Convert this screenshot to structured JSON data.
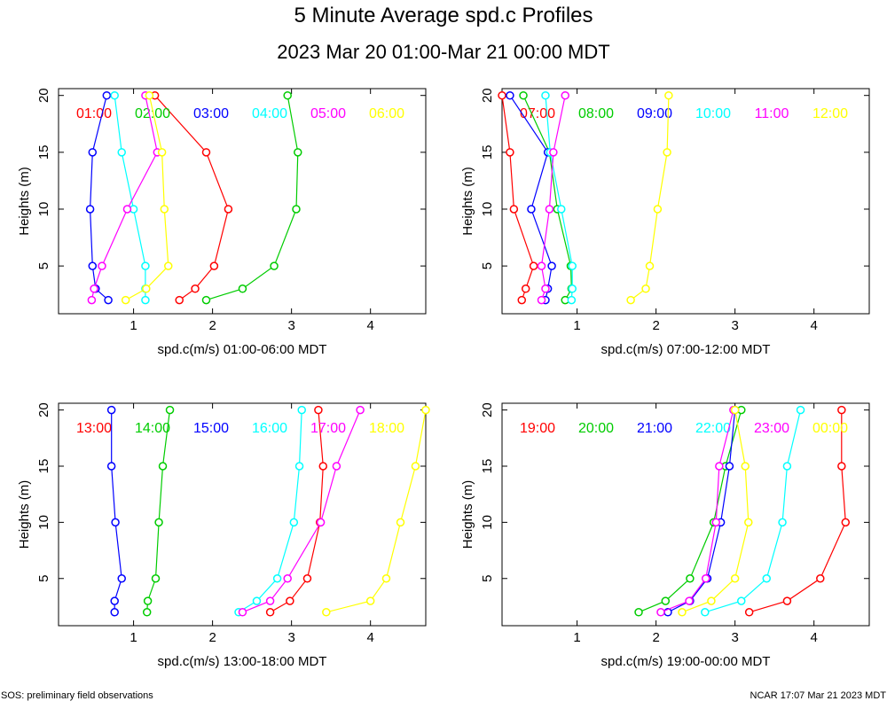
{
  "title": "5 Minute Average spd.c Profiles",
  "subtitle": "2023 Mar 20 01:00-Mar 21 00:00 MDT",
  "footer_left": "SOS: preliminary field observations",
  "footer_right": "NCAR 17:07 Mar 21 2023 MDT",
  "colors": [
    "#ff0000",
    "#00cc00",
    "#0000ff",
    "#00ffff",
    "#ff00ff",
    "#ffff00"
  ],
  "chart_data": [
    {
      "type": "line",
      "xlabel": "spd.c(m/s) 01:00-06:00 MDT",
      "ylabel": "Heights (m)",
      "xlim": [
        0.05,
        4.7
      ],
      "ylim": [
        0.8,
        20.6
      ],
      "xticks": [
        1,
        2,
        3,
        4
      ],
      "yticks": [
        5,
        10,
        15,
        20
      ],
      "series": [
        {
          "name": "01:00",
          "x": [
            1.58,
            1.78,
            2.02,
            2.2,
            1.92,
            1.27
          ],
          "y": [
            2,
            3,
            5,
            10,
            15,
            20
          ]
        },
        {
          "name": "02:00",
          "x": [
            1.92,
            2.38,
            2.78,
            3.06,
            3.08,
            2.95
          ],
          "y": [
            2,
            3,
            5,
            10,
            15,
            20
          ]
        },
        {
          "name": "03:00",
          "x": [
            0.68,
            0.52,
            0.48,
            0.45,
            0.48,
            0.66
          ],
          "y": [
            2,
            3,
            5,
            10,
            15,
            20
          ]
        },
        {
          "name": "04:00",
          "x": [
            1.15,
            1.15,
            1.15,
            1.0,
            0.85,
            0.76
          ],
          "y": [
            2,
            3,
            5,
            10,
            15,
            20
          ]
        },
        {
          "name": "05:00",
          "x": [
            0.47,
            0.5,
            0.6,
            0.92,
            1.3,
            1.15
          ],
          "y": [
            2,
            3,
            5,
            10,
            15,
            20
          ]
        },
        {
          "name": "06:00",
          "x": [
            0.9,
            1.16,
            1.44,
            1.39,
            1.36,
            1.2
          ],
          "y": [
            2,
            3,
            5,
            10,
            15,
            20
          ]
        }
      ]
    },
    {
      "type": "line",
      "xlabel": "spd.c(m/s) 07:00-12:00 MDT",
      "ylabel": "Heights (m)",
      "xlim": [
        0.05,
        4.7
      ],
      "ylim": [
        0.8,
        20.6
      ],
      "xticks": [
        1,
        2,
        3,
        4
      ],
      "yticks": [
        5,
        10,
        15,
        20
      ],
      "series": [
        {
          "name": "07:00",
          "x": [
            0.3,
            0.35,
            0.45,
            0.2,
            0.15,
            0.05
          ],
          "y": [
            2,
            3,
            5,
            10,
            15,
            20
          ]
        },
        {
          "name": "08:00",
          "x": [
            0.85,
            0.93,
            0.92,
            0.75,
            0.65,
            0.32
          ],
          "y": [
            2,
            3,
            5,
            10,
            15,
            20
          ]
        },
        {
          "name": "09:00",
          "x": [
            0.6,
            0.63,
            0.68,
            0.42,
            0.63,
            0.15
          ],
          "y": [
            2,
            3,
            5,
            10,
            15,
            20
          ]
        },
        {
          "name": "10:00",
          "x": [
            0.93,
            0.94,
            0.94,
            0.8,
            0.66,
            0.6
          ],
          "y": [
            2,
            3,
            5,
            10,
            15,
            20
          ]
        },
        {
          "name": "11:00",
          "x": [
            0.55,
            0.6,
            0.55,
            0.65,
            0.7,
            0.85
          ],
          "y": [
            2,
            3,
            5,
            10,
            15,
            20
          ]
        },
        {
          "name": "12:00",
          "x": [
            1.68,
            1.87,
            1.92,
            2.02,
            2.14,
            2.16
          ],
          "y": [
            2,
            3,
            5,
            10,
            15,
            20
          ]
        }
      ]
    },
    {
      "type": "line",
      "xlabel": "spd.c(m/s) 13:00-18:00 MDT",
      "ylabel": "Heights (m)",
      "xlim": [
        0.05,
        4.7
      ],
      "ylim": [
        0.8,
        20.6
      ],
      "xticks": [
        1,
        2,
        3,
        4
      ],
      "yticks": [
        5,
        10,
        15,
        20
      ],
      "series": [
        {
          "name": "13:00",
          "x": [
            2.73,
            2.98,
            3.2,
            3.36,
            3.4,
            3.34
          ],
          "y": [
            2,
            3,
            5,
            10,
            15,
            20
          ]
        },
        {
          "name": "14:00",
          "x": [
            1.17,
            1.18,
            1.28,
            1.32,
            1.37,
            1.46
          ],
          "y": [
            2,
            3,
            5,
            10,
            15,
            20
          ]
        },
        {
          "name": "15:00",
          "x": [
            0.76,
            0.76,
            0.85,
            0.77,
            0.72,
            0.72
          ],
          "y": [
            2,
            3,
            5,
            10,
            15,
            20
          ]
        },
        {
          "name": "16:00",
          "x": [
            2.33,
            2.56,
            2.82,
            3.03,
            3.1,
            3.13
          ],
          "y": [
            2,
            3,
            5,
            10,
            15,
            20
          ]
        },
        {
          "name": "17:00",
          "x": [
            2.38,
            2.73,
            2.95,
            3.37,
            3.57,
            3.87
          ],
          "y": [
            2,
            3,
            5,
            10,
            15,
            20
          ]
        },
        {
          "name": "18:00",
          "x": [
            3.44,
            4.0,
            4.2,
            4.38,
            4.57,
            4.7
          ],
          "y": [
            2,
            3,
            5,
            10,
            15,
            20
          ]
        }
      ]
    },
    {
      "type": "line",
      "xlabel": "spd.c(m/s) 19:00-00:00 MDT",
      "ylabel": "Heights (m)",
      "xlim": [
        0.05,
        4.7
      ],
      "ylim": [
        0.8,
        20.6
      ],
      "xticks": [
        1,
        2,
        3,
        4
      ],
      "yticks": [
        5,
        10,
        15,
        20
      ],
      "series": [
        {
          "name": "19:00",
          "x": [
            3.18,
            3.66,
            4.08,
            4.4,
            4.35,
            4.35
          ],
          "y": [
            2,
            3,
            5,
            10,
            15,
            20
          ]
        },
        {
          "name": "20:00",
          "x": [
            1.78,
            2.12,
            2.43,
            2.73,
            2.88,
            3.08
          ],
          "y": [
            2,
            3,
            5,
            10,
            15,
            20
          ]
        },
        {
          "name": "21:00",
          "x": [
            2.15,
            2.43,
            2.65,
            2.82,
            2.93,
            3.0
          ],
          "y": [
            2,
            3,
            5,
            10,
            15,
            20
          ]
        },
        {
          "name": "22:00",
          "x": [
            2.62,
            3.08,
            3.4,
            3.6,
            3.66,
            3.83
          ],
          "y": [
            2,
            3,
            5,
            10,
            15,
            20
          ]
        },
        {
          "name": "23:00",
          "x": [
            2.06,
            2.42,
            2.63,
            2.76,
            2.8,
            2.98
          ],
          "y": [
            2,
            3,
            5,
            10,
            15,
            20
          ]
        },
        {
          "name": "00:00",
          "x": [
            2.33,
            2.7,
            3.0,
            3.17,
            3.13,
            3.0
          ],
          "y": [
            2,
            3,
            5,
            10,
            15,
            20
          ]
        }
      ]
    }
  ]
}
